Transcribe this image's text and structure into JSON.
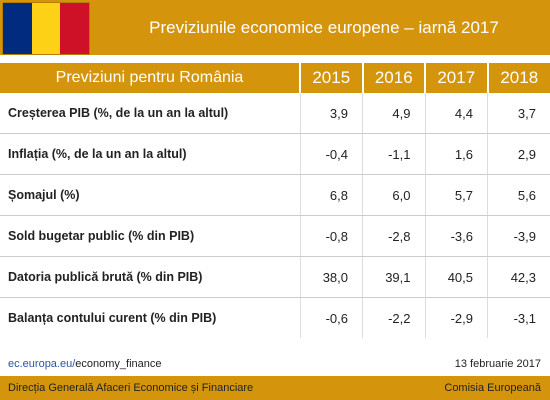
{
  "banner": {
    "title": "Previziunile economice europene – iarnă 2017",
    "flag_colors": [
      "#002b7f",
      "#fcd116",
      "#ce1126"
    ]
  },
  "chart_data": {
    "type": "table",
    "title": "Previziuni pentru România",
    "columns": [
      "2015",
      "2016",
      "2017",
      "2018"
    ],
    "rows": [
      {
        "label": "Creșterea PIB (%, de la un an la altul)",
        "values": [
          "3,9",
          "4,9",
          "4,4",
          "3,7"
        ]
      },
      {
        "label": "Inflația (%, de la un an la altul)",
        "values": [
          "-0,4",
          "-1,1",
          "1,6",
          "2,9"
        ]
      },
      {
        "label": "Șomajul (%)",
        "values": [
          "6,8",
          "6,0",
          "5,7",
          "5,6"
        ]
      },
      {
        "label": "Sold bugetar public (% din PIB)",
        "values": [
          "-0,8",
          "-2,8",
          "-3,6",
          "-3,9"
        ]
      },
      {
        "label": "Datoria publică brută (% din PIB)",
        "values": [
          "38,0",
          "39,1",
          "40,5",
          "42,3"
        ]
      },
      {
        "label": "Balanța contului curent (% din PIB)",
        "values": [
          "-0,6",
          "-2,2",
          "-2,9",
          "-3,1"
        ]
      }
    ]
  },
  "source": {
    "domain": "ec.europa.eu/",
    "path": "economy_finance"
  },
  "date": "13 februarie 2017",
  "footer": {
    "left": "Direcția Generală Afaceri Economice și Financiare",
    "right": "Comisia Europeană"
  },
  "colors": {
    "accent": "#d4950d",
    "link": "#2b55a5"
  }
}
